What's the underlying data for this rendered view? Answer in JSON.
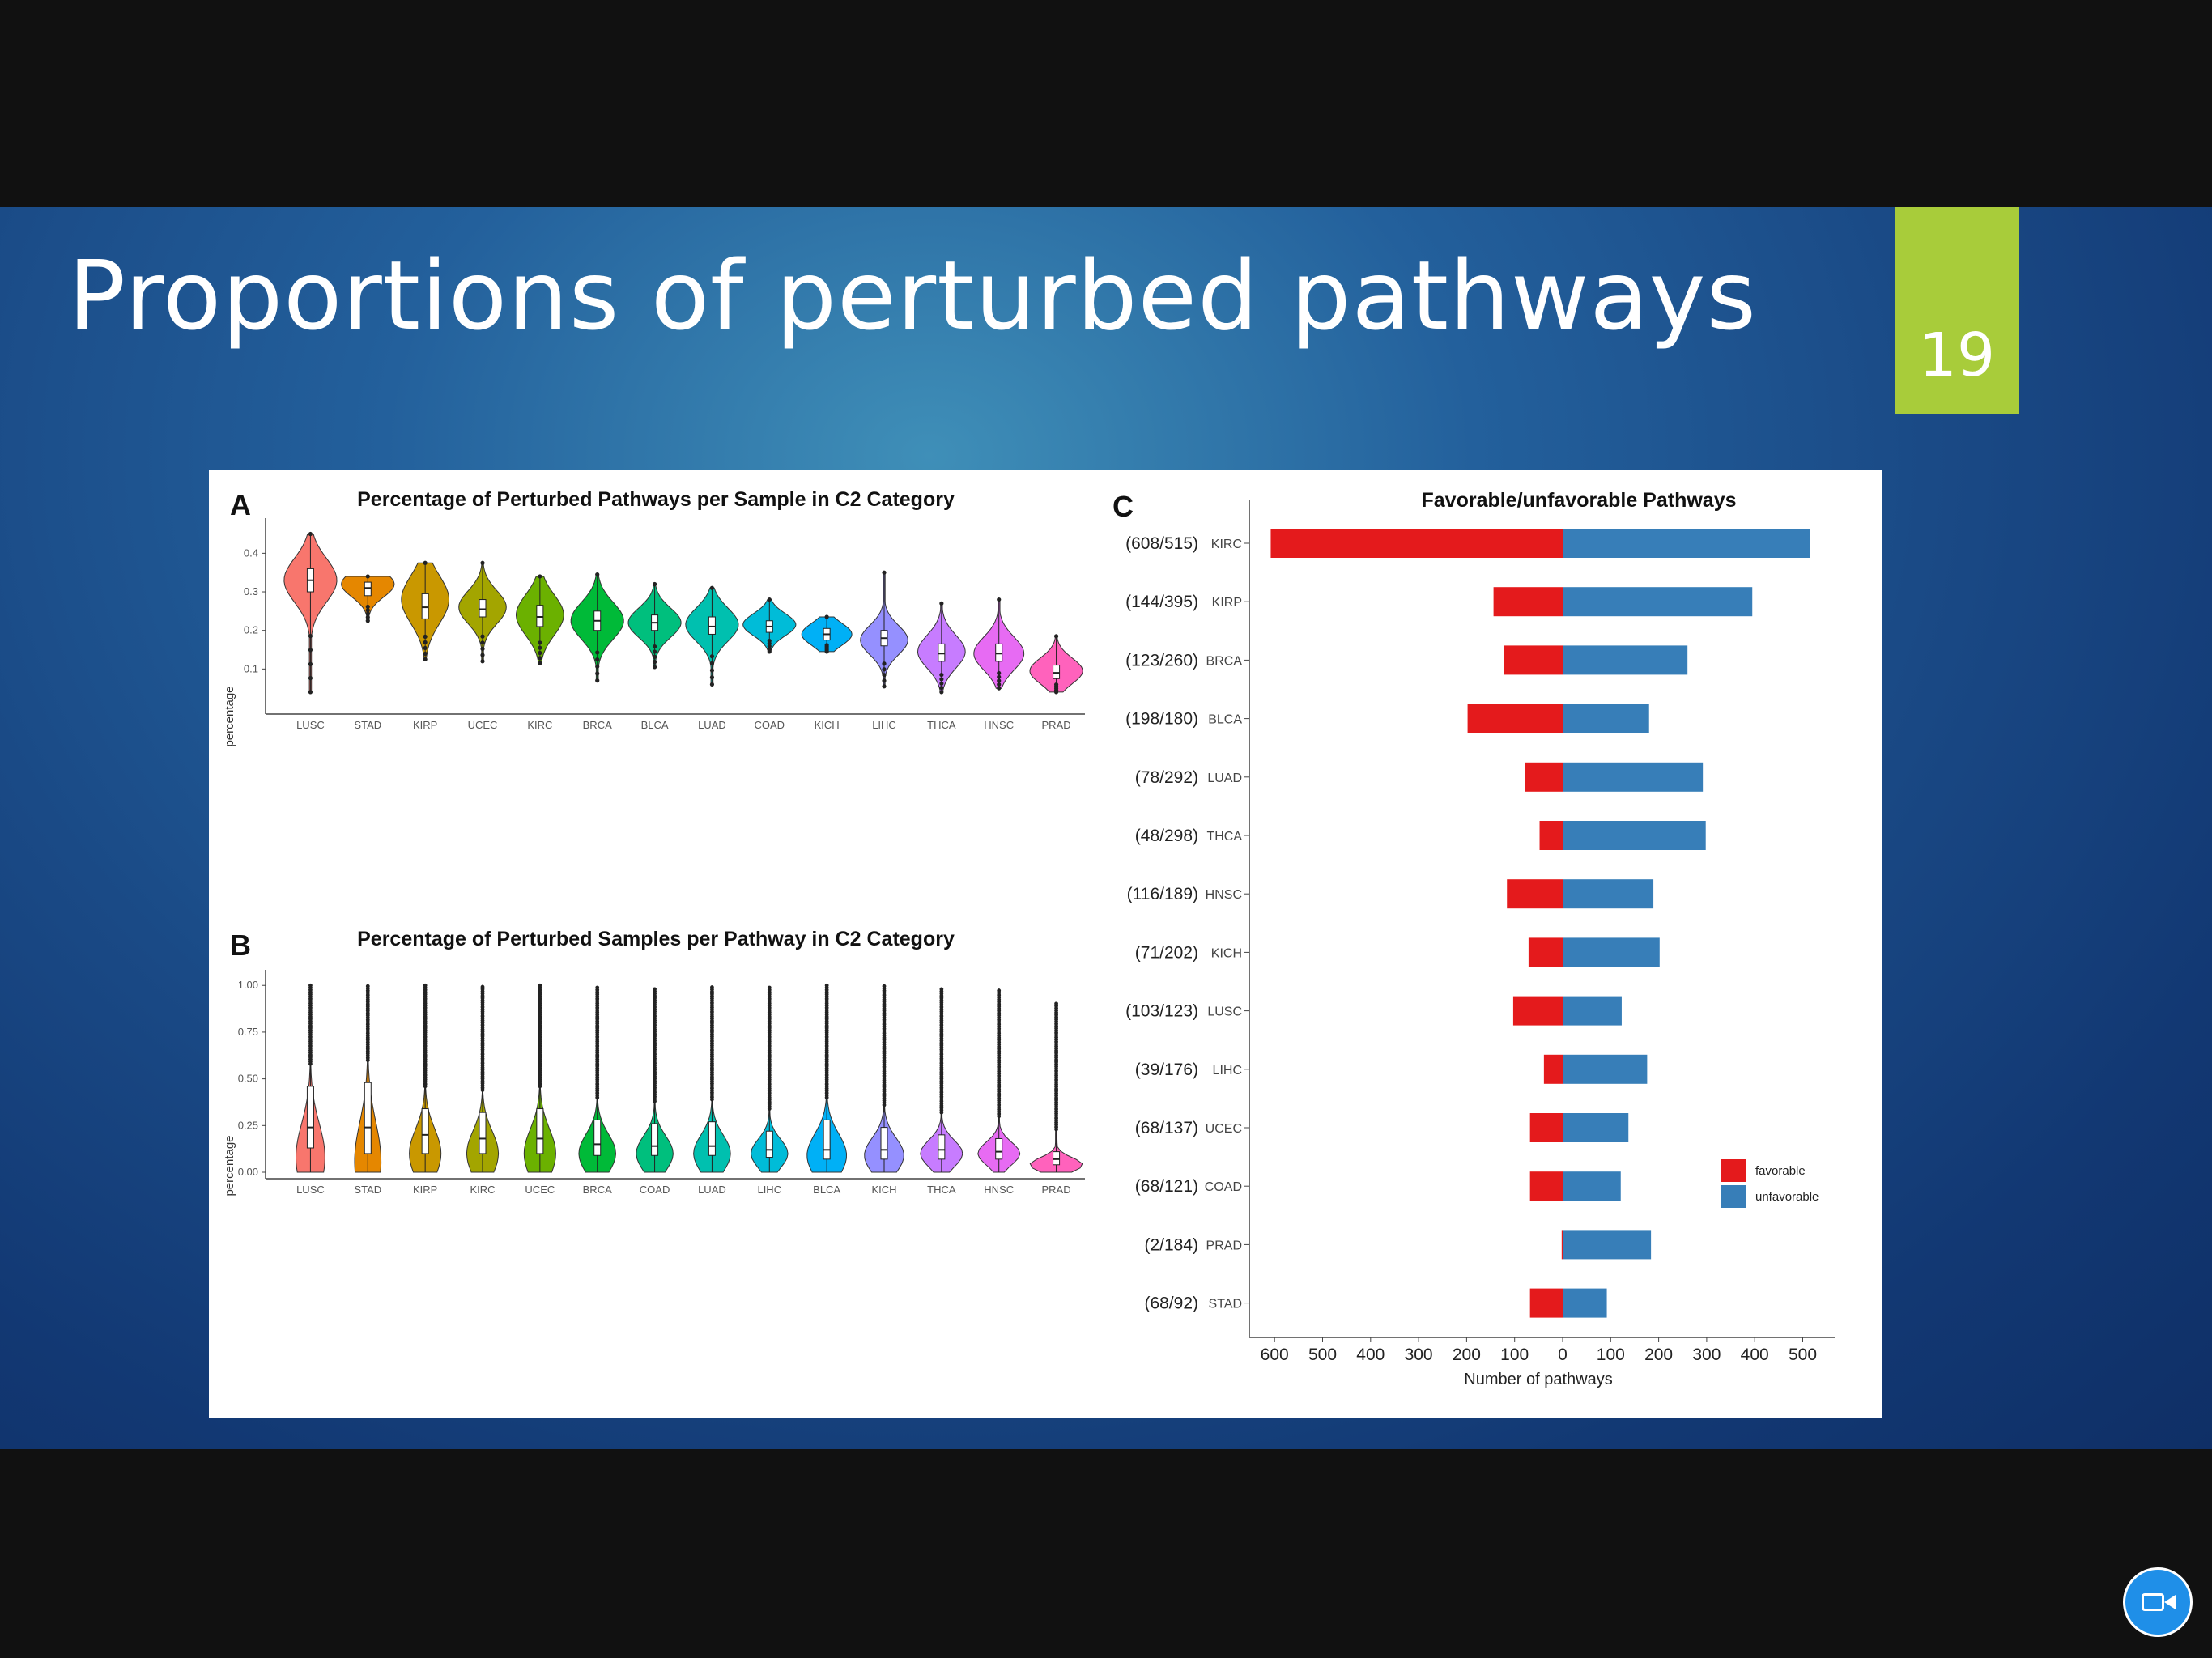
{
  "slide": {
    "title": "Proportions of perturbed pathways",
    "number": "19"
  },
  "colors": {
    "favorable": "#e41a1c",
    "unfavorable": "#377eb8",
    "slide_number_bg": "#a8cc3a"
  },
  "icons": {
    "meeting_button": "video-camera-icon"
  },
  "chart_data": [
    {
      "type": "violin",
      "panel": "A",
      "title": "Percentage of Perturbed Pathways per Sample in C2 Category",
      "xlabel": "",
      "ylabel": "percentage",
      "ylim": [
        0.0,
        0.47
      ],
      "yticks": [
        "0.1",
        "0.2",
        "0.3",
        "0.4"
      ],
      "ytick_values": [
        0.1,
        0.2,
        0.3,
        0.4
      ],
      "categories": [
        "LUSC",
        "STAD",
        "KIRP",
        "UCEC",
        "KIRC",
        "BRCA",
        "BLCA",
        "LUAD",
        "COAD",
        "KICH",
        "LIHC",
        "THCA",
        "HNSC",
        "PRAD"
      ],
      "colors": [
        "#f8766d",
        "#e58700",
        "#c99800",
        "#a3a500",
        "#6bb100",
        "#00ba38",
        "#00bf7d",
        "#00c0af",
        "#00bcd8",
        "#00b0f6",
        "#9590ff",
        "#c77cff",
        "#e76bf3",
        "#ff62bc"
      ],
      "violins": [
        {
          "min": 0.04,
          "max": 0.45,
          "median": 0.33,
          "q1": 0.3,
          "q3": 0.36,
          "mode": 0.33,
          "width": 1.0
        },
        {
          "min": 0.225,
          "max": 0.34,
          "median": 0.31,
          "q1": 0.29,
          "q3": 0.325,
          "mode": 0.32,
          "width": 1.0
        },
        {
          "min": 0.125,
          "max": 0.375,
          "median": 0.26,
          "q1": 0.23,
          "q3": 0.295,
          "mode": 0.28,
          "width": 0.9
        },
        {
          "min": 0.12,
          "max": 0.375,
          "median": 0.255,
          "q1": 0.235,
          "q3": 0.28,
          "mode": 0.26,
          "width": 0.9
        },
        {
          "min": 0.115,
          "max": 0.34,
          "median": 0.235,
          "q1": 0.21,
          "q3": 0.265,
          "mode": 0.24,
          "width": 0.9
        },
        {
          "min": 0.07,
          "max": 0.345,
          "median": 0.225,
          "q1": 0.2,
          "q3": 0.25,
          "mode": 0.225,
          "width": 1.0
        },
        {
          "min": 0.105,
          "max": 0.32,
          "median": 0.22,
          "q1": 0.2,
          "q3": 0.24,
          "mode": 0.22,
          "width": 1.0
        },
        {
          "min": 0.06,
          "max": 0.31,
          "median": 0.21,
          "q1": 0.19,
          "q3": 0.235,
          "mode": 0.215,
          "width": 1.0
        },
        {
          "min": 0.145,
          "max": 0.28,
          "median": 0.21,
          "q1": 0.195,
          "q3": 0.225,
          "mode": 0.215,
          "width": 1.0
        },
        {
          "min": 0.145,
          "max": 0.235,
          "median": 0.19,
          "q1": 0.175,
          "q3": 0.205,
          "mode": 0.19,
          "width": 0.95
        },
        {
          "min": 0.055,
          "max": 0.35,
          "median": 0.18,
          "q1": 0.16,
          "q3": 0.2,
          "mode": 0.175,
          "width": 0.9
        },
        {
          "min": 0.04,
          "max": 0.27,
          "median": 0.14,
          "q1": 0.12,
          "q3": 0.165,
          "mode": 0.145,
          "width": 0.9
        },
        {
          "min": 0.05,
          "max": 0.28,
          "median": 0.14,
          "q1": 0.12,
          "q3": 0.165,
          "mode": 0.14,
          "width": 0.95
        },
        {
          "min": 0.04,
          "max": 0.185,
          "median": 0.09,
          "q1": 0.075,
          "q3": 0.11,
          "mode": 0.095,
          "width": 1.0
        }
      ]
    },
    {
      "type": "violin",
      "panel": "B",
      "title": "Percentage of Perturbed Samples per Pathway in C2 Category",
      "xlabel": "",
      "ylabel": "percentage",
      "ylim": [
        0.0,
        1.04
      ],
      "yticks": [
        "0.00",
        "0.25",
        "0.50",
        "0.75",
        "1.00"
      ],
      "ytick_values": [
        0.0,
        0.25,
        0.5,
        0.75,
        1.0
      ],
      "categories": [
        "LUSC",
        "STAD",
        "KIRP",
        "KIRC",
        "UCEC",
        "BRCA",
        "COAD",
        "LUAD",
        "LIHC",
        "BLCA",
        "KICH",
        "THCA",
        "HNSC",
        "PRAD"
      ],
      "colors": [
        "#f8766d",
        "#e58700",
        "#c99800",
        "#a3a500",
        "#6bb100",
        "#00ba38",
        "#00bf7d",
        "#00c0af",
        "#00bcd8",
        "#00b0f6",
        "#9590ff",
        "#c77cff",
        "#e76bf3",
        "#ff62bc"
      ],
      "violins": [
        {
          "max": 1.0,
          "median": 0.24,
          "q1": 0.13,
          "q3": 0.46,
          "mode": 0.08,
          "width": 0.55
        },
        {
          "max": 1.0,
          "median": 0.24,
          "q1": 0.1,
          "q3": 0.48,
          "mode": 0.06,
          "width": 0.5
        },
        {
          "max": 1.0,
          "median": 0.2,
          "q1": 0.1,
          "q3": 0.34,
          "mode": 0.1,
          "width": 0.6
        },
        {
          "max": 1.0,
          "median": 0.18,
          "q1": 0.1,
          "q3": 0.32,
          "mode": 0.1,
          "width": 0.6
        },
        {
          "max": 1.0,
          "median": 0.18,
          "q1": 0.1,
          "q3": 0.34,
          "mode": 0.1,
          "width": 0.6
        },
        {
          "max": 0.99,
          "median": 0.15,
          "q1": 0.09,
          "q3": 0.28,
          "mode": 0.1,
          "width": 0.7
        },
        {
          "max": 0.98,
          "median": 0.14,
          "q1": 0.09,
          "q3": 0.26,
          "mode": 0.1,
          "width": 0.7
        },
        {
          "max": 0.99,
          "median": 0.14,
          "q1": 0.09,
          "q3": 0.27,
          "mode": 0.1,
          "width": 0.7
        },
        {
          "max": 0.99,
          "median": 0.12,
          "q1": 0.08,
          "q3": 0.22,
          "mode": 0.1,
          "width": 0.7
        },
        {
          "max": 1.0,
          "median": 0.12,
          "q1": 0.07,
          "q3": 0.28,
          "mode": 0.09,
          "width": 0.75
        },
        {
          "max": 1.0,
          "median": 0.12,
          "q1": 0.07,
          "q3": 0.24,
          "mode": 0.09,
          "width": 0.75
        },
        {
          "max": 0.98,
          "median": 0.12,
          "q1": 0.07,
          "q3": 0.2,
          "mode": 0.1,
          "width": 0.8
        },
        {
          "max": 0.98,
          "median": 0.11,
          "q1": 0.07,
          "q3": 0.18,
          "mode": 0.1,
          "width": 0.8
        },
        {
          "max": 0.91,
          "median": 0.07,
          "q1": 0.04,
          "q3": 0.11,
          "mode": 0.04,
          "width": 1.0
        }
      ]
    },
    {
      "type": "bar",
      "orientation": "horizontal-diverging",
      "panel": "C",
      "title": "Favorable/unfavorable Pathways",
      "xlabel": "Number of pathways",
      "ylabel": "",
      "xlim": [
        -620,
        580
      ],
      "xticks": [
        "600",
        "500",
        "400",
        "300",
        "200",
        "100",
        "0",
        "100",
        "200",
        "300",
        "400",
        "500"
      ],
      "xtick_values": [
        -600,
        -500,
        -400,
        -300,
        -200,
        -100,
        0,
        100,
        200,
        300,
        400,
        500
      ],
      "categories": [
        "KIRC",
        "KIRP",
        "BRCA",
        "BLCA",
        "LUAD",
        "THCA",
        "HNSC",
        "KICH",
        "LUSC",
        "LIHC",
        "UCEC",
        "COAD",
        "PRAD",
        "STAD"
      ],
      "category_annotations": [
        "(608/515)",
        "(144/395)",
        "(123/260)",
        "(198/180)",
        "(78/292)",
        "(48/298)",
        "(116/189)",
        "(71/202)",
        "(103/123)",
        "(39/176)",
        "(68/137)",
        "(68/121)",
        "(2/184)",
        "(68/92)"
      ],
      "series": [
        {
          "name": "favorable",
          "values": [
            608,
            144,
            123,
            198,
            78,
            48,
            116,
            71,
            103,
            39,
            68,
            68,
            2,
            68
          ]
        },
        {
          "name": "unfavorable",
          "values": [
            515,
            395,
            260,
            180,
            292,
            298,
            189,
            202,
            123,
            176,
            137,
            121,
            184,
            92
          ]
        }
      ],
      "legend": "right"
    }
  ]
}
